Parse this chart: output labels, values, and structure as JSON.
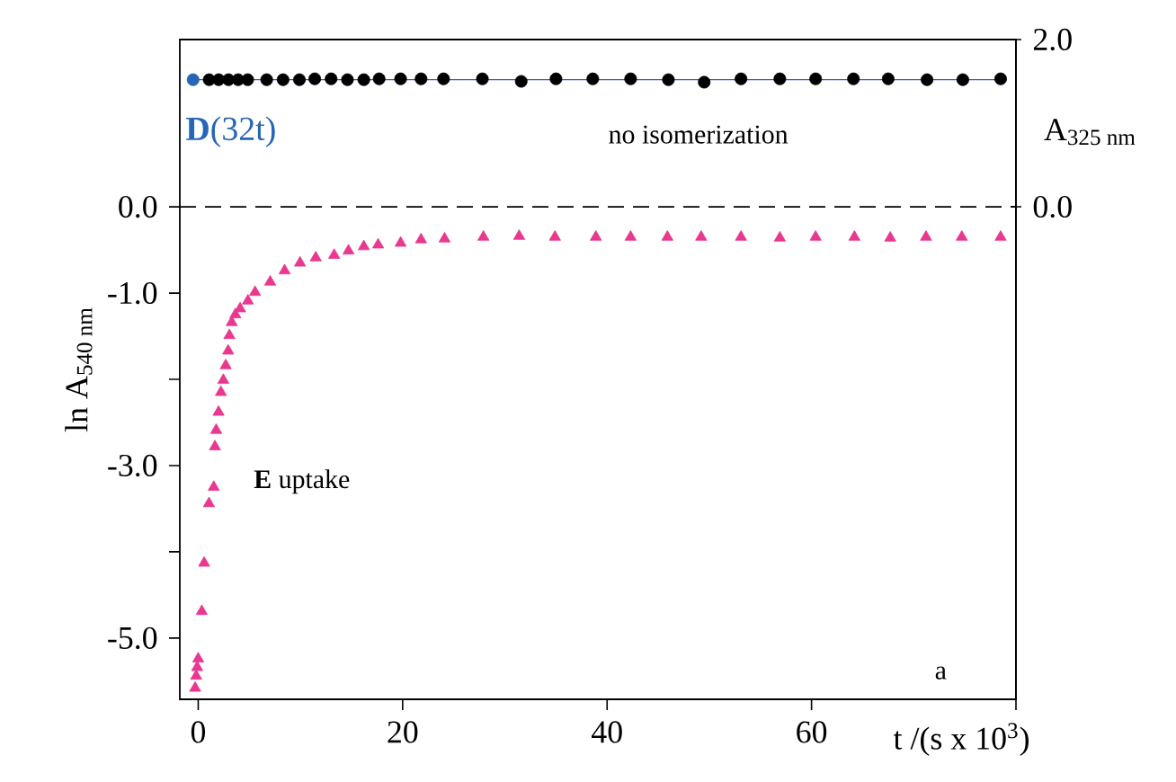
{
  "chart_data": {
    "type": "scatter",
    "xlabel": "t /(s x 10$^{3}$)",
    "ylabel": "ln A$_{540 nm}$",
    "y2label": "A$_{325 nm}$",
    "xlim": [
      -1.8,
      80
    ],
    "ylim": [
      -5.71,
      1.94
    ],
    "y2lim": [
      -5.89,
      2.0
    ],
    "xticks": [
      0,
      20,
      40,
      60,
      {
        "value": 80,
        "label": null
      }
    ],
    "yticks": [
      {
        "value": -5,
        "label": "-5.0"
      },
      {
        "value": -4,
        "label": null
      },
      {
        "value": -3,
        "label": "-3.0"
      },
      {
        "value": -2,
        "label": null
      },
      {
        "value": -1,
        "label": "-1.0"
      },
      {
        "value": 0,
        "label": "0.0"
      }
    ],
    "y2ticks": [
      {
        "value": 0,
        "label": "0.0"
      },
      {
        "value": 2,
        "label": "2.0"
      }
    ],
    "ref_lines": [
      {
        "axis": "y",
        "value": 0,
        "line_style": "dashed",
        "color": "#000000"
      }
    ],
    "annotations": [
      "no isomerization",
      "**E** uptake",
      "a"
    ],
    "series": [
      {
        "name": "**D**(32t)",
        "axis": "y2",
        "marker": "circle",
        "color": "#2566b5",
        "x": [
          -0.5
        ],
        "values": [
          1.52
        ]
      },
      {
        "type": "line",
        "axis": "y2",
        "marker": "none",
        "color": "#3a55c8",
        "x": [
          -0.5,
          78.5
        ],
        "values": [
          1.52,
          1.52
        ]
      },
      {
        "axis": "y2",
        "marker": "circle",
        "color": "#000000",
        "x": [
          1.07,
          2.0,
          2.96,
          3.9,
          4.84,
          6.7,
          8.3,
          9.9,
          11.4,
          13.0,
          14.6,
          16.2,
          17.7,
          19.8,
          21.8,
          24.0,
          27.8,
          31.6,
          35.0,
          38.6,
          42.3,
          46.0,
          49.5,
          53.1,
          56.9,
          60.4,
          64.1,
          67.5,
          71.3,
          74.8,
          78.5
        ],
        "values": [
          1.52,
          1.52,
          1.52,
          1.52,
          1.52,
          1.52,
          1.52,
          1.52,
          1.53,
          1.53,
          1.52,
          1.52,
          1.53,
          1.53,
          1.53,
          1.53,
          1.53,
          1.5,
          1.53,
          1.53,
          1.53,
          1.52,
          1.49,
          1.53,
          1.53,
          1.53,
          1.53,
          1.53,
          1.52,
          1.52,
          1.53
        ]
      },
      {
        "axis": "y",
        "marker": "triangle",
        "color": "#e8388f",
        "x": [
          -0.3,
          -0.2,
          -0.1,
          0.0,
          0.35,
          0.58,
          1.05,
          1.52,
          1.64,
          1.76,
          1.99,
          2.22,
          2.46,
          2.69,
          2.93,
          3.05,
          3.28,
          3.63,
          4.1,
          4.86,
          5.56,
          7.04,
          8.45,
          9.96,
          11.5,
          13.3,
          14.7,
          16.2,
          17.6,
          19.8,
          21.8,
          24.1,
          27.9,
          31.4,
          34.9,
          38.9,
          42.3,
          45.9,
          49.2,
          53.1,
          56.9,
          60.4,
          64.2,
          67.7,
          71.2,
          74.7,
          78.5
        ],
        "values": [
          -5.58,
          -5.44,
          -5.34,
          -5.24,
          -4.69,
          -4.13,
          -3.44,
          -3.25,
          -2.78,
          -2.59,
          -2.38,
          -2.15,
          -2.01,
          -1.84,
          -1.67,
          -1.49,
          -1.34,
          -1.25,
          -1.18,
          -1.09,
          -0.99,
          -0.87,
          -0.74,
          -0.65,
          -0.59,
          -0.56,
          -0.51,
          -0.46,
          -0.44,
          -0.42,
          -0.38,
          -0.37,
          -0.35,
          -0.34,
          -0.35,
          -0.35,
          -0.35,
          -0.35,
          -0.35,
          -0.35,
          -0.36,
          -0.35,
          -0.35,
          -0.36,
          -0.35,
          -0.35,
          -0.35
        ]
      }
    ]
  }
}
